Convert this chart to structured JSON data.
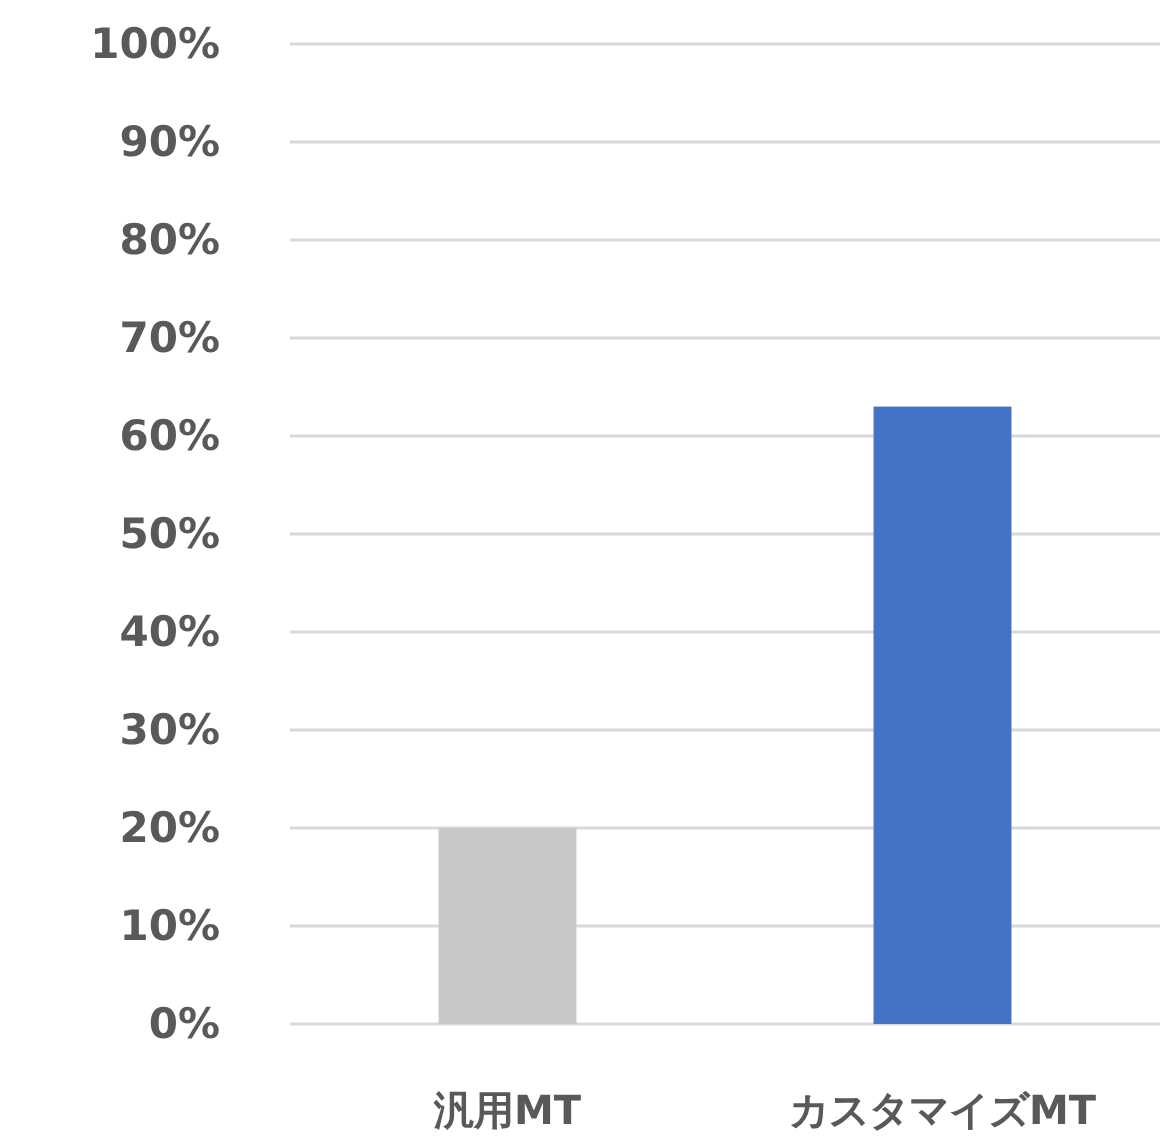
{
  "chart_data": {
    "type": "bar",
    "categories": [
      "汎用MT",
      "カスタマイズMT"
    ],
    "values": [
      20,
      63
    ],
    "colors": [
      "#c8c8c8",
      "#4472c4"
    ],
    "ylim": [
      0,
      100
    ],
    "yticks": [
      {
        "value": 0,
        "label": "0%"
      },
      {
        "value": 10,
        "label": "10%"
      },
      {
        "value": 20,
        "label": "20%"
      },
      {
        "value": 30,
        "label": "30%"
      },
      {
        "value": 40,
        "label": "40%"
      },
      {
        "value": 50,
        "label": "50%"
      },
      {
        "value": 60,
        "label": "60%"
      },
      {
        "value": 70,
        "label": "70%"
      },
      {
        "value": 80,
        "label": "80%"
      },
      {
        "value": 90,
        "label": "90%"
      },
      {
        "value": 100,
        "label": "100%"
      }
    ],
    "grid": "y"
  }
}
